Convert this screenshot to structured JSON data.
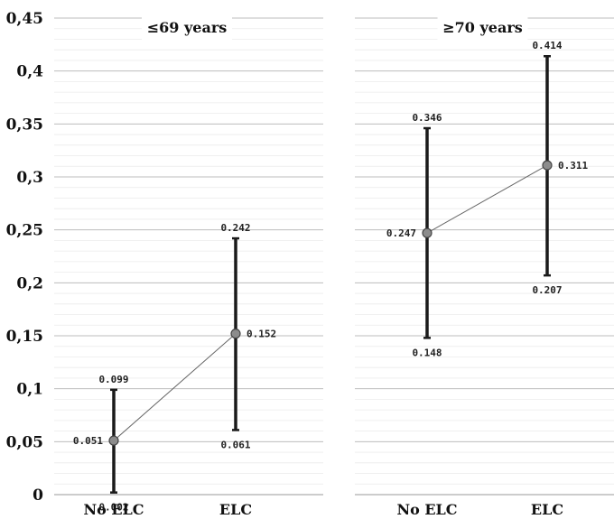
{
  "chart_data": {
    "type": "line",
    "ylim": [
      0,
      0.45
    ],
    "y_ticks": [
      "0",
      "0,05",
      "0,1",
      "0,15",
      "0,2",
      "0,25",
      "0,3",
      "0,35",
      "0,4",
      "0,45"
    ],
    "grid": true,
    "panels": [
      {
        "title": "≤69 years",
        "categories": [
          "No ELC",
          "ELC"
        ],
        "values": [
          0.051,
          0.152
        ],
        "lower": [
          0.002,
          0.061
        ],
        "upper": [
          0.099,
          0.242
        ],
        "value_labels": [
          "0.051",
          "0.152"
        ],
        "lower_labels": [
          "0.002",
          "0.061"
        ],
        "upper_labels": [
          "0.099",
          "0.242"
        ]
      },
      {
        "title": "≥70 years",
        "categories": [
          "No ELC",
          "ELC"
        ],
        "values": [
          0.247,
          0.311
        ],
        "lower": [
          0.148,
          0.207
        ],
        "upper": [
          0.346,
          0.414
        ],
        "value_labels": [
          "0.247",
          "0.311"
        ],
        "lower_labels": [
          "0.148",
          "0.207"
        ],
        "upper_labels": [
          "0.346",
          "0.414"
        ]
      }
    ]
  }
}
